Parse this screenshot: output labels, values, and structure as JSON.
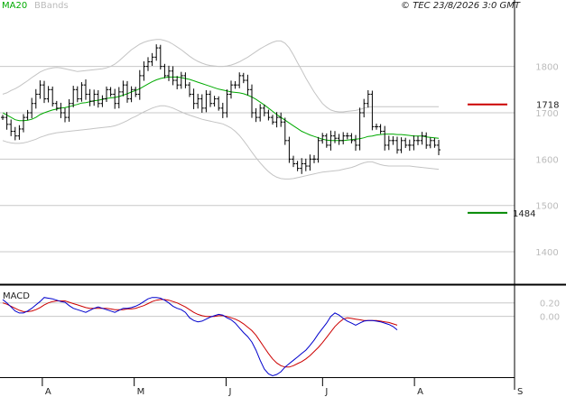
{
  "header": {
    "indicator_ma": "MA20",
    "indicator_bb": "BBands",
    "copyright": "© TEC 23/8/2026 3:0 GMT"
  },
  "colors": {
    "ma": "#00aa00",
    "bands": "#c4c4c4",
    "price": "#000000",
    "resistance": "#cc0000",
    "support": "#008800",
    "macd": "#0000cc",
    "signal": "#cc0000",
    "grid": "#c8c8c8"
  },
  "chart_data": [
    {
      "type": "ohlc-bars",
      "panel": "price",
      "ylim": [
        1330,
        1920
      ],
      "yticks": [
        "1800",
        "1700",
        "1600",
        "1500",
        "1400"
      ],
      "y_tick_values": [
        1800,
        1700,
        1600,
        1500,
        1400
      ],
      "xticks": [
        "A",
        "M",
        "J",
        "J",
        "A",
        "S"
      ],
      "x_tick_bars": [
        10,
        30,
        50,
        71,
        91,
        112
      ],
      "n_slots": 112,
      "levels": [
        {
          "name": "resistance",
          "label": "1718",
          "value": 1718
        },
        {
          "name": "support",
          "label": "1484",
          "value": 1484
        }
      ],
      "close": [
        1690,
        1675,
        1660,
        1650,
        1665,
        1690,
        1700,
        1720,
        1740,
        1760,
        1730,
        1750,
        1720,
        1710,
        1700,
        1690,
        1720,
        1750,
        1730,
        1760,
        1740,
        1725,
        1740,
        1720,
        1730,
        1750,
        1740,
        1720,
        1745,
        1760,
        1730,
        1750,
        1740,
        1780,
        1800,
        1810,
        1820,
        1840,
        1800,
        1780,
        1790,
        1770,
        1760,
        1780,
        1760,
        1740,
        1720,
        1730,
        1710,
        1740,
        1720,
        1730,
        1710,
        1700,
        1740,
        1760,
        1760,
        1780,
        1770,
        1750,
        1700,
        1690,
        1710,
        1700,
        1690,
        1680,
        1690,
        1680,
        1640,
        1600,
        1590,
        1580,
        1590,
        1585,
        1600,
        1600,
        1640,
        1650,
        1630,
        1650,
        1645,
        1640,
        1650,
        1650,
        1640,
        1630,
        1700,
        1720,
        1740,
        1670,
        1670,
        1660,
        1630,
        1640,
        1640,
        1620,
        1640,
        1630,
        1630,
        1640,
        1640,
        1650,
        1630,
        1640,
        1630,
        1620
      ],
      "ma20": [
        1700,
        1695,
        1690,
        1685,
        1683,
        1683,
        1684,
        1686,
        1690,
        1696,
        1700,
        1703,
        1706,
        1708,
        1710,
        1711,
        1713,
        1716,
        1718,
        1721,
        1722,
        1724,
        1726,
        1727,
        1729,
        1731,
        1732,
        1733,
        1735,
        1738,
        1741,
        1745,
        1748,
        1752,
        1757,
        1762,
        1767,
        1771,
        1774,
        1776,
        1777,
        1777,
        1777,
        1776,
        1774,
        1772,
        1769,
        1766,
        1763,
        1760,
        1757,
        1754,
        1751,
        1749,
        1747,
        1745,
        1744,
        1743,
        1741,
        1738,
        1734,
        1729,
        1723,
        1717,
        1710,
        1703,
        1696,
        1690,
        1684,
        1678,
        1672,
        1666,
        1660,
        1656,
        1652,
        1649,
        1646,
        1643,
        1641,
        1640,
        1640,
        1640,
        1640,
        1641,
        1642,
        1643,
        1644,
        1646,
        1649,
        1650,
        1652,
        1653,
        1654,
        1654,
        1654,
        1653,
        1653,
        1652,
        1651,
        1650,
        1650,
        1650,
        1648,
        1647,
        1646,
        1645
      ],
      "bb_upper": [
        1740,
        1743,
        1748,
        1752,
        1757,
        1763,
        1769,
        1776,
        1782,
        1788,
        1792,
        1795,
        1797,
        1798,
        1797,
        1795,
        1793,
        1791,
        1789,
        1790,
        1791,
        1792,
        1793,
        1794,
        1795,
        1797,
        1800,
        1805,
        1812,
        1820,
        1828,
        1836,
        1842,
        1848,
        1852,
        1855,
        1857,
        1858,
        1858,
        1856,
        1853,
        1848,
        1842,
        1836,
        1829,
        1822,
        1816,
        1811,
        1807,
        1804,
        1802,
        1801,
        1800,
        1800,
        1801,
        1803,
        1806,
        1810,
        1815,
        1820,
        1826,
        1832,
        1838,
        1843,
        1848,
        1852,
        1855,
        1855,
        1850,
        1840,
        1825,
        1808,
        1792,
        1775,
        1760,
        1745,
        1732,
        1720,
        1712,
        1706,
        1703,
        1702,
        1702,
        1703,
        1704,
        1705,
        1707,
        1710,
        1712,
        1713,
        1713,
        1713,
        1713,
        1713,
        1713,
        1713,
        1713,
        1713,
        1713,
        1713,
        1713,
        1713,
        1713,
        1713,
        1713,
        1713
      ],
      "bb_lower": [
        1640,
        1637,
        1635,
        1634,
        1634,
        1635,
        1637,
        1640,
        1643,
        1647,
        1650,
        1653,
        1655,
        1657,
        1658,
        1659,
        1660,
        1661,
        1662,
        1663,
        1664,
        1665,
        1666,
        1667,
        1668,
        1669,
        1670,
        1672,
        1675,
        1679,
        1683,
        1688,
        1692,
        1697,
        1702,
        1706,
        1710,
        1713,
        1715,
        1715,
        1713,
        1710,
        1706,
        1702,
        1698,
        1695,
        1692,
        1689,
        1686,
        1684,
        1682,
        1680,
        1678,
        1676,
        1672,
        1667,
        1660,
        1651,
        1640,
        1628,
        1615,
        1603,
        1592,
        1582,
        1573,
        1566,
        1561,
        1558,
        1557,
        1557,
        1558,
        1560,
        1562,
        1564,
        1566,
        1568,
        1570,
        1572,
        1573,
        1574,
        1575,
        1576,
        1578,
        1580,
        1582,
        1585,
        1589,
        1592,
        1594,
        1594,
        1591,
        1588,
        1586,
        1585,
        1585,
        1585,
        1585,
        1585,
        1585,
        1584,
        1583,
        1582,
        1581,
        1580,
        1579,
        1578
      ]
    },
    {
      "type": "line",
      "panel": "indicator",
      "title": "MACD",
      "ylim": [
        -90,
        45
      ],
      "yticks": [
        "0.20",
        "0.00"
      ],
      "y_tick_values": [
        20,
        0
      ],
      "series": [
        {
          "values": [
            25,
            20,
            14,
            8,
            5,
            5,
            8,
            12,
            17,
            22,
            28,
            27,
            26,
            24,
            22,
            21,
            16,
            12,
            10,
            8,
            6,
            9,
            12,
            14,
            12,
            10,
            8,
            6,
            9,
            12,
            12,
            13,
            15,
            18,
            22,
            26,
            28,
            28,
            27,
            24,
            20,
            15,
            12,
            10,
            6,
            -2,
            -6,
            -8,
            -7,
            -4,
            -1,
            1,
            3,
            2,
            -2,
            -5,
            -10,
            -17,
            -24,
            -30,
            -38,
            -50,
            -65,
            -78,
            -85,
            -88,
            -86,
            -82,
            -75,
            -70,
            -65,
            -60,
            -55,
            -50,
            -43,
            -35,
            -26,
            -18,
            -10,
            0,
            5,
            2,
            -3,
            -7,
            -10,
            -13,
            -10,
            -7,
            -6,
            -6,
            -7,
            -8,
            -10,
            -12,
            -15,
            -20
          ]
        },
        {
          "values": [
            20,
            18,
            15,
            12,
            9,
            7,
            7,
            8,
            10,
            13,
            17,
            20,
            22,
            23,
            23,
            23,
            21,
            19,
            17,
            15,
            13,
            12,
            12,
            12,
            12,
            12,
            11,
            10,
            10,
            10,
            11,
            11,
            12,
            14,
            16,
            19,
            22,
            24,
            25,
            25,
            24,
            22,
            20,
            17,
            14,
            10,
            6,
            3,
            1,
            0,
            0,
            0,
            1,
            1,
            0,
            -2,
            -4,
            -7,
            -11,
            -16,
            -21,
            -28,
            -37,
            -46,
            -55,
            -63,
            -69,
            -73,
            -75,
            -75,
            -73,
            -70,
            -67,
            -63,
            -58,
            -52,
            -46,
            -39,
            -31,
            -23,
            -15,
            -9,
            -4,
            -2,
            -3,
            -4,
            -5,
            -6,
            -6,
            -6,
            -6,
            -7,
            -8,
            -9,
            -11,
            -13
          ]
        }
      ]
    }
  ]
}
